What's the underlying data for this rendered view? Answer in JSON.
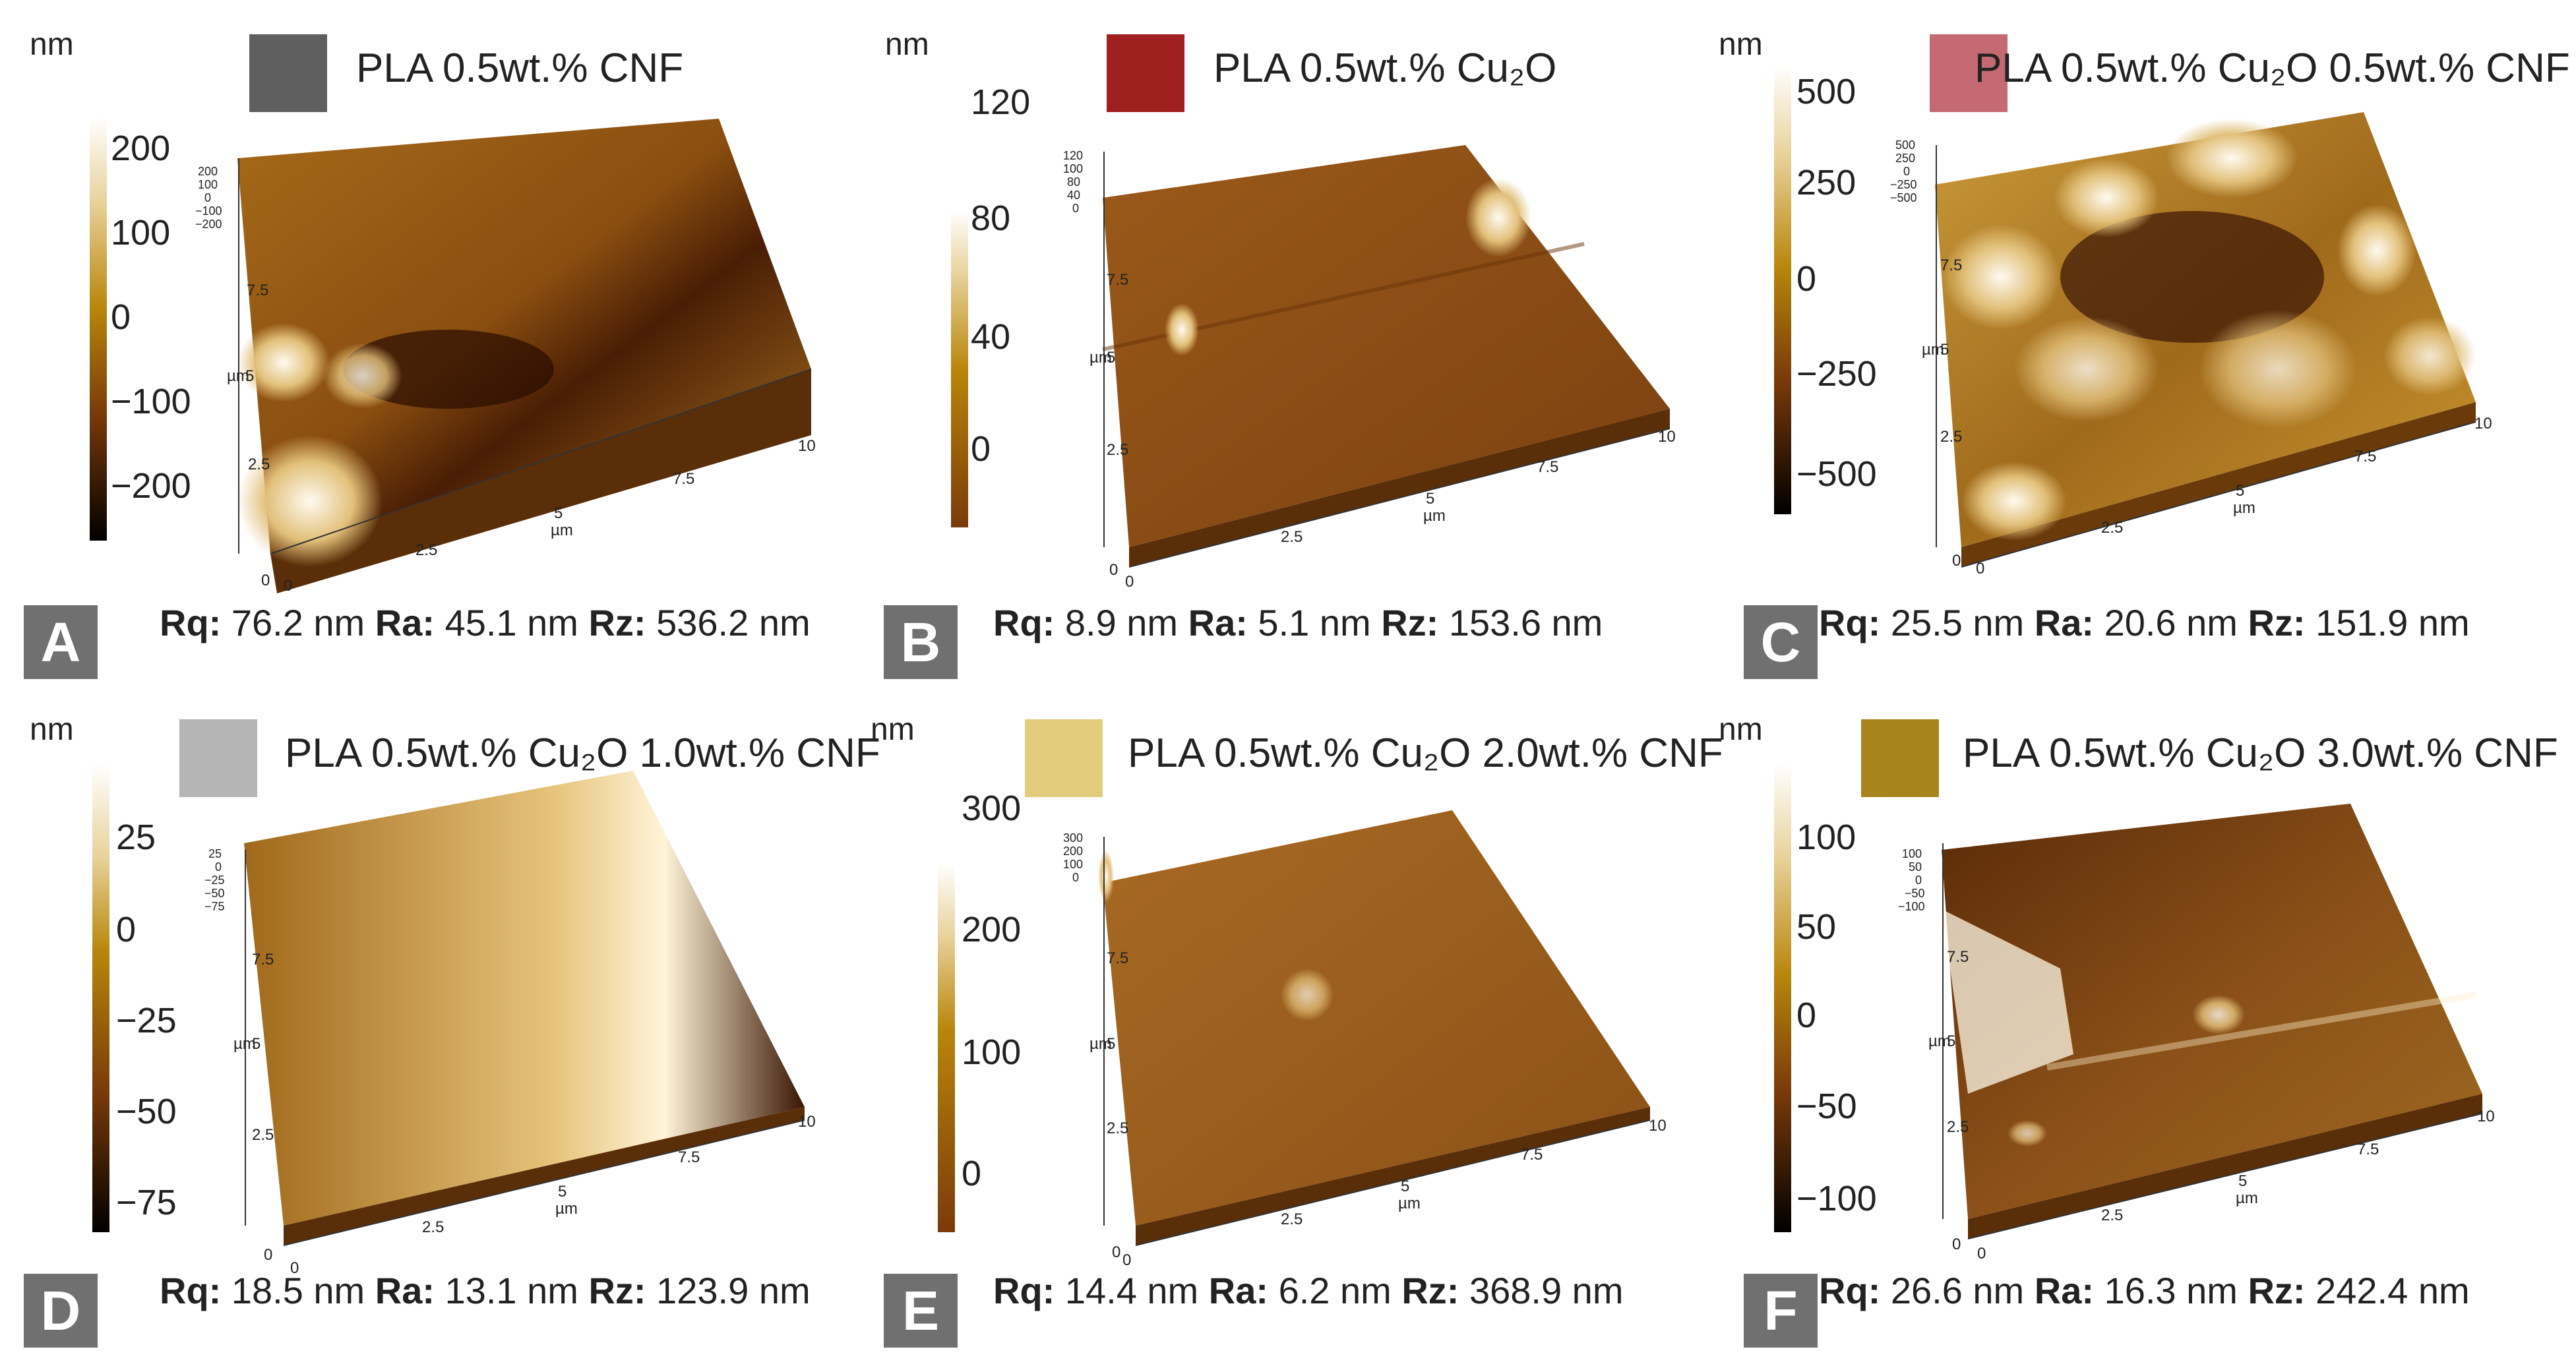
{
  "unit_label": "nm",
  "axis_unit": "µm",
  "axis_ticks": [
    "0",
    "2.5",
    "5",
    "7.5",
    "10"
  ],
  "stat_labels": {
    "rq": "Rq:",
    "ra": "Ra:",
    "rz": "Rz:"
  },
  "panels": [
    {
      "letter": "A",
      "legend": "PLA 0.5wt.% CNF",
      "swatch_color": "#5f5f5f",
      "colorbar_ticks": [
        "200",
        "100",
        "0",
        "−100",
        "−200"
      ],
      "height_axis_ticks": [
        "200",
        "100",
        "0",
        "−100",
        "−200"
      ],
      "rq": "76.2 nm",
      "ra": "45.1 nm",
      "rz": "536.2 nm"
    },
    {
      "letter": "B",
      "legend": "PLA 0.5wt.% Cu₂O",
      "swatch_color": "#a01f1f",
      "colorbar_ticks": [
        "120",
        "80",
        "40",
        "0"
      ],
      "height_axis_ticks": [
        "120",
        "100",
        "80",
        "40",
        "0"
      ],
      "rq": "8.9 nm",
      "ra": "5.1 nm",
      "rz": "153.6 nm"
    },
    {
      "letter": "C",
      "legend": "PLA 0.5wt.% Cu₂O 0.5wt.% CNF",
      "swatch_color": "#c56a72",
      "colorbar_ticks": [
        "500",
        "250",
        "0",
        "−250",
        "−500"
      ],
      "height_axis_ticks": [
        "500",
        "250",
        "0",
        "−250",
        "−500"
      ],
      "rq": "25.5 nm",
      "ra": "20.6 nm",
      "rz": "151.9 nm"
    },
    {
      "letter": "D",
      "legend": "PLA 0.5wt.% Cu₂O 1.0wt.% CNF",
      "swatch_color": "#b5b5b5",
      "colorbar_ticks": [
        "25",
        "0",
        "−25",
        "−50",
        "−75"
      ],
      "height_axis_ticks": [
        "25",
        "0",
        "−25",
        "−50",
        "−75"
      ],
      "rq": "18.5 nm",
      "ra": "13.1 nm",
      "rz": "123.9 nm"
    },
    {
      "letter": "E",
      "legend": "PLA 0.5wt.% Cu₂O 2.0wt.% CNF",
      "swatch_color": "#e3cd7c",
      "colorbar_ticks": [
        "300",
        "200",
        "100",
        "0"
      ],
      "height_axis_ticks": [
        "300",
        "200",
        "100",
        "0"
      ],
      "rq": "14.4 nm",
      "ra": "6.2 nm",
      "rz": "368.9 nm"
    },
    {
      "letter": "F",
      "legend": "PLA 0.5wt.% Cu₂O 3.0wt.% CNF",
      "swatch_color": "#a8841c",
      "colorbar_ticks": [
        "100",
        "50",
        "0",
        "−50",
        "−100"
      ],
      "height_axis_ticks": [
        "100",
        "50",
        "0",
        "−50",
        "−100"
      ],
      "rq": "26.6 nm",
      "ra": "16.3 nm",
      "rz": "242.4 nm"
    }
  ]
}
